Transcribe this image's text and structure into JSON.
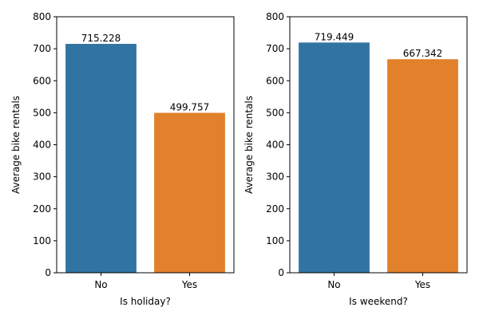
{
  "chart_data": [
    {
      "type": "bar",
      "categories": [
        "No",
        "Yes"
      ],
      "values": [
        715.228,
        499.757
      ],
      "value_labels": [
        "715.228",
        "499.757"
      ],
      "colors": [
        "#3274a1",
        "#e1812c"
      ],
      "xlabel": "Is holiday?",
      "ylabel": "Average bike rentals",
      "ylim": [
        0,
        800
      ],
      "yticks": [
        0,
        100,
        200,
        300,
        400,
        500,
        600,
        700,
        800
      ],
      "grid": false
    },
    {
      "type": "bar",
      "categories": [
        "No",
        "Yes"
      ],
      "values": [
        719.449,
        667.342
      ],
      "value_labels": [
        "719.449",
        "667.342"
      ],
      "colors": [
        "#3274a1",
        "#e1812c"
      ],
      "xlabel": "Is weekend?",
      "ylabel": "Average bike rentals",
      "ylim": [
        0,
        800
      ],
      "yticks": [
        0,
        100,
        200,
        300,
        400,
        500,
        600,
        700,
        800
      ],
      "grid": false
    }
  ]
}
